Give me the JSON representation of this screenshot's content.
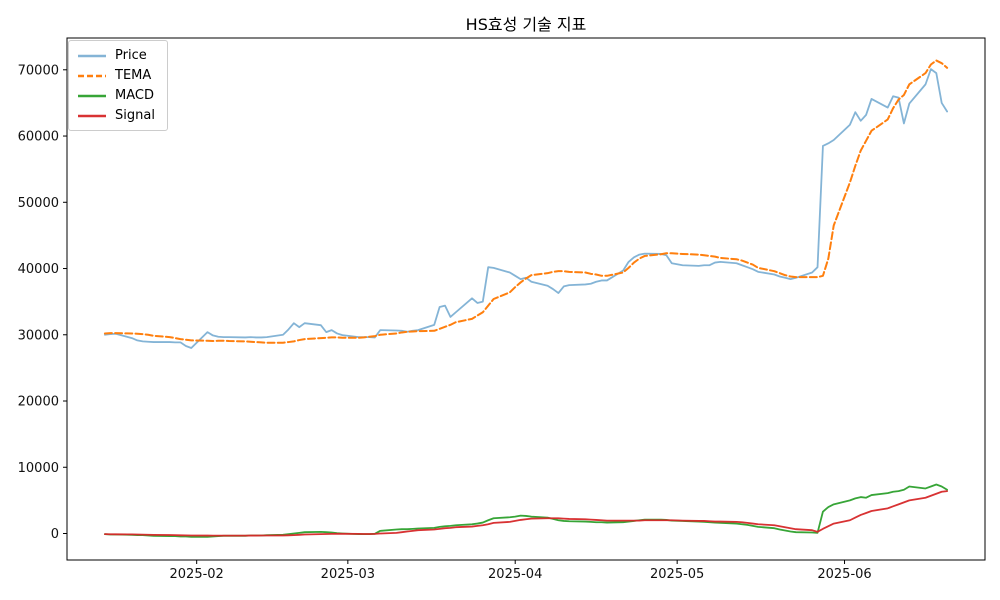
{
  "chart_data": {
    "type": "line",
    "title": "HS효성 기술 지표",
    "grid": false,
    "legend_position": "upper-left",
    "ylim": [
      -4000,
      74800
    ],
    "y_ticks": [
      0,
      10000,
      20000,
      30000,
      40000,
      50000,
      60000,
      70000
    ],
    "x_tick_dates": [
      "2025-02-01",
      "2025-03-01",
      "2025-04-01",
      "2025-05-01",
      "2025-06-01"
    ],
    "x_tick_labels": [
      "2025-02",
      "2025-03",
      "2025-04",
      "2025-05",
      "2025-06"
    ],
    "x_dates": [
      "2025-01-15",
      "2025-01-16",
      "2025-01-17",
      "2025-01-20",
      "2025-01-21",
      "2025-01-22",
      "2025-01-23",
      "2025-01-24",
      "2025-01-27",
      "2025-01-28",
      "2025-01-29",
      "2025-01-30",
      "2025-01-31",
      "2025-02-03",
      "2025-02-04",
      "2025-02-05",
      "2025-02-06",
      "2025-02-07",
      "2025-02-10",
      "2025-02-11",
      "2025-02-12",
      "2025-02-13",
      "2025-02-14",
      "2025-02-17",
      "2025-02-18",
      "2025-02-19",
      "2025-02-20",
      "2025-02-21",
      "2025-02-24",
      "2025-02-25",
      "2025-02-26",
      "2025-02-27",
      "2025-02-28",
      "2025-03-03",
      "2025-03-04",
      "2025-03-05",
      "2025-03-06",
      "2025-03-07",
      "2025-03-10",
      "2025-03-11",
      "2025-03-12",
      "2025-03-13",
      "2025-03-14",
      "2025-03-17",
      "2025-03-18",
      "2025-03-19",
      "2025-03-20",
      "2025-03-21",
      "2025-03-24",
      "2025-03-25",
      "2025-03-26",
      "2025-03-27",
      "2025-03-28",
      "2025-03-31",
      "2025-04-01",
      "2025-04-02",
      "2025-04-03",
      "2025-04-04",
      "2025-04-07",
      "2025-04-08",
      "2025-04-09",
      "2025-04-10",
      "2025-04-11",
      "2025-04-14",
      "2025-04-15",
      "2025-04-16",
      "2025-04-17",
      "2025-04-18",
      "2025-04-21",
      "2025-04-22",
      "2025-04-23",
      "2025-04-24",
      "2025-04-25",
      "2025-04-28",
      "2025-04-29",
      "2025-04-30",
      "2025-05-02",
      "2025-05-05",
      "2025-05-06",
      "2025-05-07",
      "2025-05-08",
      "2025-05-09",
      "2025-05-12",
      "2025-05-13",
      "2025-05-14",
      "2025-05-15",
      "2025-05-16",
      "2025-05-19",
      "2025-05-20",
      "2025-05-21",
      "2025-05-22",
      "2025-05-23",
      "2025-05-26",
      "2025-05-27",
      "2025-05-28",
      "2025-05-29",
      "2025-05-30",
      "2025-06-02",
      "2025-06-03",
      "2025-06-04",
      "2025-06-05",
      "2025-06-06",
      "2025-06-09",
      "2025-06-10",
      "2025-06-11",
      "2025-06-12",
      "2025-06-13",
      "2025-06-16",
      "2025-06-17",
      "2025-06-18",
      "2025-06-19",
      "2025-06-20"
    ],
    "series": [
      {
        "name": "Price",
        "color": "#1f77b4",
        "opacity": 0.55,
        "dash": "solid",
        "width": 1.8,
        "values": [
          30000,
          30100,
          30150,
          29500,
          29150,
          29000,
          28950,
          28900,
          28900,
          28850,
          28850,
          28300,
          28000,
          30400,
          29900,
          29700,
          29650,
          29650,
          29600,
          29650,
          29600,
          29600,
          29650,
          30000,
          30800,
          31750,
          31150,
          31750,
          31450,
          30400,
          30700,
          30200,
          29950,
          29650,
          29650,
          29650,
          29600,
          30700,
          30650,
          30600,
          30450,
          30600,
          30700,
          31500,
          34200,
          34400,
          32700,
          33400,
          35500,
          34800,
          35000,
          40200,
          40100,
          39400,
          38900,
          38400,
          38600,
          38000,
          37400,
          36900,
          36300,
          37300,
          37500,
          37600,
          37700,
          38000,
          38200,
          38200,
          39700,
          41000,
          41700,
          42100,
          42250,
          42200,
          42000,
          40800,
          40500,
          40400,
          40500,
          40500,
          40900,
          41000,
          40800,
          40500,
          40200,
          39900,
          39500,
          39100,
          38800,
          38600,
          38400,
          38600,
          39400,
          40200,
          58500,
          58900,
          59400,
          61700,
          63600,
          62300,
          63200,
          65600,
          64300,
          66000,
          65800,
          61900,
          64900,
          67800,
          70100,
          69500,
          65000,
          63700
        ]
      },
      {
        "name": "TEMA",
        "color": "#ff7f0e",
        "opacity": 1,
        "dash": "dashed",
        "width": 2,
        "values": [
          30200,
          30250,
          30250,
          30200,
          30150,
          30100,
          30000,
          29850,
          29650,
          29500,
          29350,
          29250,
          29150,
          29100,
          29050,
          29100,
          29100,
          29050,
          29000,
          28950,
          28900,
          28850,
          28800,
          28800,
          28900,
          29000,
          29200,
          29350,
          29500,
          29550,
          29600,
          29600,
          29550,
          29550,
          29600,
          29700,
          29800,
          30000,
          30200,
          30350,
          30450,
          30500,
          30550,
          30600,
          30900,
          31200,
          31500,
          31900,
          32400,
          32900,
          33400,
          34400,
          35400,
          36400,
          37200,
          37900,
          38500,
          39000,
          39300,
          39500,
          39600,
          39600,
          39500,
          39400,
          39200,
          39100,
          38900,
          38900,
          39400,
          40100,
          40900,
          41500,
          41900,
          42150,
          42300,
          42300,
          42200,
          42100,
          42000,
          41900,
          41800,
          41600,
          41400,
          41200,
          40900,
          40600,
          40100,
          39600,
          39300,
          39000,
          38800,
          38700,
          38700,
          38700,
          38900,
          41500,
          46500,
          53000,
          55500,
          57800,
          59300,
          60800,
          62500,
          64200,
          65500,
          66200,
          67800,
          69500,
          70800,
          71400,
          71000,
          70300
        ]
      },
      {
        "name": "MACD",
        "color": "#2ca02c",
        "opacity": 0.95,
        "dash": "solid",
        "width": 1.8,
        "values": [
          -100,
          -150,
          -150,
          -200,
          -250,
          -250,
          -300,
          -350,
          -400,
          -400,
          -450,
          -450,
          -500,
          -500,
          -450,
          -400,
          -350,
          -350,
          -350,
          -300,
          -300,
          -300,
          -250,
          -200,
          -100,
          0,
          100,
          200,
          250,
          200,
          150,
          50,
          0,
          -100,
          -100,
          -100,
          -50,
          400,
          600,
          650,
          650,
          700,
          750,
          850,
          1000,
          1100,
          1150,
          1250,
          1400,
          1500,
          1650,
          2000,
          2300,
          2450,
          2550,
          2700,
          2650,
          2550,
          2400,
          2200,
          2000,
          1900,
          1850,
          1800,
          1750,
          1700,
          1700,
          1650,
          1700,
          1800,
          1900,
          2000,
          2100,
          2100,
          2050,
          1950,
          1900,
          1800,
          1750,
          1700,
          1650,
          1600,
          1500,
          1400,
          1300,
          1150,
          1000,
          800,
          600,
          450,
          300,
          200,
          150,
          100,
          3300,
          4000,
          4400,
          5000,
          5300,
          5500,
          5400,
          5800,
          6100,
          6300,
          6400,
          6600,
          7100,
          6800,
          7100,
          7400,
          7100,
          6600
        ]
      },
      {
        "name": "Signal",
        "color": "#d62728",
        "opacity": 0.95,
        "dash": "solid",
        "width": 1.8,
        "values": [
          -100,
          -110,
          -120,
          -130,
          -150,
          -170,
          -190,
          -210,
          -230,
          -250,
          -270,
          -280,
          -300,
          -310,
          -320,
          -320,
          -320,
          -320,
          -320,
          -310,
          -310,
          -300,
          -300,
          -290,
          -270,
          -240,
          -200,
          -150,
          -100,
          -80,
          -60,
          -50,
          -50,
          -60,
          -70,
          -70,
          -60,
          0,
          100,
          200,
          300,
          400,
          500,
          600,
          700,
          800,
          850,
          950,
          1050,
          1150,
          1250,
          1400,
          1600,
          1750,
          1900,
          2050,
          2150,
          2250,
          2300,
          2300,
          2300,
          2250,
          2200,
          2150,
          2100,
          2050,
          2000,
          1950,
          1950,
          1950,
          1950,
          1950,
          2000,
          2000,
          2000,
          2000,
          1950,
          1900,
          1900,
          1850,
          1800,
          1800,
          1750,
          1700,
          1600,
          1500,
          1400,
          1250,
          1100,
          950,
          800,
          650,
          500,
          250,
          700,
          1100,
          1500,
          2000,
          2400,
          2800,
          3100,
          3400,
          3800,
          4100,
          4400,
          4700,
          5000,
          5400,
          5700,
          6000,
          6300,
          6400
        ]
      }
    ]
  }
}
